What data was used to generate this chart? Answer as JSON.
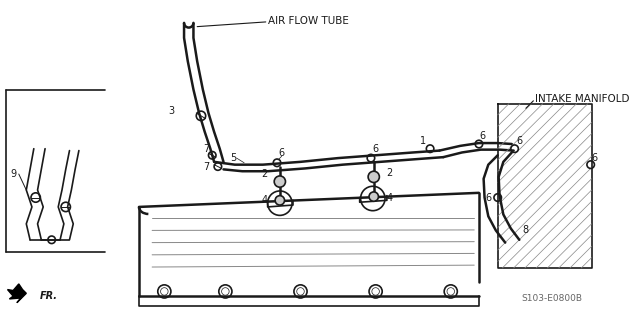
{
  "bg_color": "#ffffff",
  "line_color": "#1a1a1a",
  "gray_color": "#888888",
  "light_gray": "#cccccc",
  "label_air_flow_tube": "AIR FLOW TUBE",
  "label_intake_manifold": "INTAKE MANIFOLD",
  "label_fr": "FR.",
  "label_code": "S103-E0800B",
  "fig_width": 6.4,
  "fig_height": 3.19,
  "dpi": 100
}
